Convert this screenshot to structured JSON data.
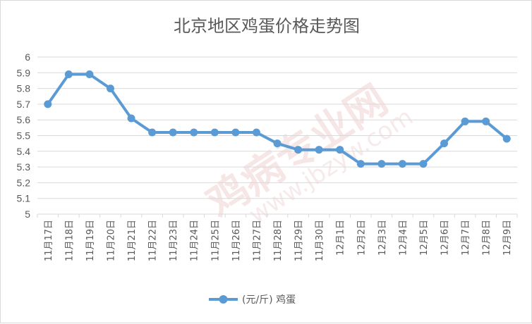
{
  "chart_data": {
    "type": "line",
    "title": "北京地区鸡蛋价格走势图",
    "categories": [
      "11月17日",
      "11月18日",
      "11月19日",
      "11月20日",
      "11月21日",
      "11月22日",
      "11月23日",
      "11月24日",
      "11月25日",
      "11月26日",
      "11月27日",
      "11月28日",
      "11月29日",
      "11月30日",
      "12月1日",
      "12月2日",
      "12月3日",
      "12月4日",
      "12月5日",
      "12月6日",
      "12月7日",
      "12月8日",
      "12月9日"
    ],
    "series": [
      {
        "name": "(元/斤) 鸡蛋",
        "values": [
          5.7,
          5.89,
          5.89,
          5.8,
          5.61,
          5.52,
          5.52,
          5.52,
          5.52,
          5.52,
          5.52,
          5.45,
          5.41,
          5.41,
          5.41,
          5.32,
          5.32,
          5.32,
          5.32,
          5.45,
          5.59,
          5.59,
          5.48
        ]
      }
    ],
    "ylim": [
      5,
      6
    ],
    "yticks": [
      "5",
      "5.1",
      "5.2",
      "5.3",
      "5.4",
      "5.5",
      "5.6",
      "5.7",
      "5.8",
      "5.9",
      "6"
    ],
    "grid": true,
    "legend_position": "bottom",
    "colors": {
      "series": "#5b9bd5",
      "grid": "#d9d9d9",
      "text": "#595959"
    },
    "watermark": {
      "text": "鸡病专业网",
      "url": "www.jbzyw.com"
    }
  }
}
